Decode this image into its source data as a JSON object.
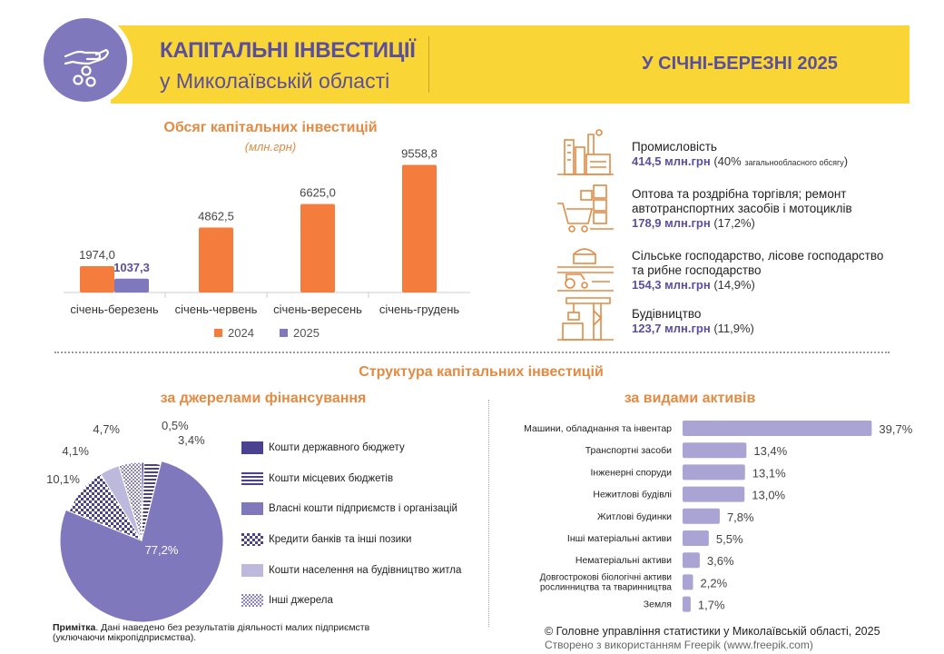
{
  "header": {
    "title": "КАПІТАЛЬНІ ІНВЕСТИЦІЇ",
    "subtitle": "у Миколаївській області",
    "period": "У СІЧНІ-БЕРЕЗНІ 2025",
    "icon": "hand-coins-icon",
    "colors": {
      "band": "#f9d535",
      "circle": "#7f78bd",
      "text": "#5a4f9c"
    }
  },
  "chart_data": [
    {
      "type": "bar",
      "title": "Обсяг капітальних інвестицій",
      "subtitle": "(млн.грн)",
      "categories": [
        "січень-березень",
        "січень-червень",
        "січень-вересень",
        "січень-грудень"
      ],
      "series": [
        {
          "name": "2024",
          "color": "#f47c3c",
          "values": [
            1974.0,
            4862.5,
            6625.0,
            9558.8
          ],
          "labels": [
            "1974,0",
            "4862,5",
            "6625,0",
            "9558,8"
          ]
        },
        {
          "name": "2025",
          "color": "#7f78bd",
          "values": [
            1037.3,
            null,
            null,
            null
          ],
          "labels": [
            "1037,3",
            "",
            "",
            ""
          ]
        }
      ],
      "ylim": [
        0,
        10000
      ],
      "legend": "bottom"
    },
    {
      "type": "pie",
      "title": "за джерелами фінансування",
      "slices": [
        {
          "label": "Кошти державного бюджету",
          "value": 0.5,
          "text": "0,5%",
          "pattern": "solid-dark"
        },
        {
          "label": "Кошти місцевих бюджетів",
          "value": 3.4,
          "text": "3,4%",
          "pattern": "horizontal-stripes"
        },
        {
          "label": "Власні кошти підприємств і організацій",
          "value": 77.2,
          "text": "77,2%",
          "pattern": "solid"
        },
        {
          "label": "Кредити банків та інші позики",
          "value": 10.1,
          "text": "10,1%",
          "pattern": "checker"
        },
        {
          "label": "Кошти населення на будівництво житла",
          "value": 4.1,
          "text": "4,1%",
          "pattern": "light"
        },
        {
          "label": "Інші джерела",
          "value": 4.7,
          "text": "4,7%",
          "pattern": "small-checker"
        }
      ]
    },
    {
      "type": "bar",
      "orientation": "horizontal",
      "title": "за видами активів",
      "categories": [
        "Машини, обладнання та інвентар",
        "Транспортні засоби",
        "Інженерні споруди",
        "Нежитлові будівлі",
        "Житлові будинки",
        "Інші матеріальні активи",
        "Нематеріальні активи",
        "Довгострокові біологічні активи рослинництва та тваринництва",
        "Земля"
      ],
      "category_lines": [
        [
          "Машини, обладнання та інвентар"
        ],
        [
          "Транспортні засоби"
        ],
        [
          "Інженерні споруди"
        ],
        [
          "Нежитлові будівлі"
        ],
        [
          "Житлові будинки"
        ],
        [
          "Інші матеріальні активи"
        ],
        [
          "Нематеріальні активи"
        ],
        [
          "Довгострокові біологічні активи",
          "рослинництва та тваринництва"
        ],
        [
          "Земля"
        ]
      ],
      "values": [
        39.7,
        13.4,
        13.1,
        13.0,
        7.8,
        5.5,
        3.6,
        2.2,
        1.7
      ],
      "labels": [
        "39,7%",
        "13,4%",
        "13,1%",
        "13,0%",
        "7,8%",
        "5,5%",
        "3,6%",
        "2,2%",
        "1,7%"
      ],
      "color": "#a9a4d4"
    }
  ],
  "sectors": [
    {
      "name": "Промисловість",
      "value": "414,5 млн.грн",
      "share": "(40%",
      "note": "загальнообласного обсягу",
      "close": ")",
      "icon": "factory-icon"
    },
    {
      "name": "Оптова та роздрібна торгівля; ремонт автотранспортних засобів і мотоциклів",
      "value": "178,9 млн.грн",
      "share": "(17,2%)",
      "icon": "shopping-cart-icon"
    },
    {
      "name": "Сільське господарство, лісове господарство та рибне господарство",
      "value": "154,3 млн.грн",
      "share": "(14,9%)",
      "icon": "tractor-icon"
    },
    {
      "name": "Будівництво",
      "value": "123,7 млн.грн",
      "share": "(11,9%)",
      "icon": "crane-icon"
    }
  ],
  "structure_title": "Структура капітальних інвестицій",
  "sources_title": "за джерелами фінансування",
  "assets_title": "за видами активів",
  "note": {
    "label": "Примітка",
    "text": ". Дані наведено без результатів діяльності малих підприємств (уключаючи мікропідприємства)."
  },
  "copyright": "© Головне управління статистики у Миколаївській області, 2025",
  "freepik": "Створено з використанням Freepik (www.freepik.com)"
}
